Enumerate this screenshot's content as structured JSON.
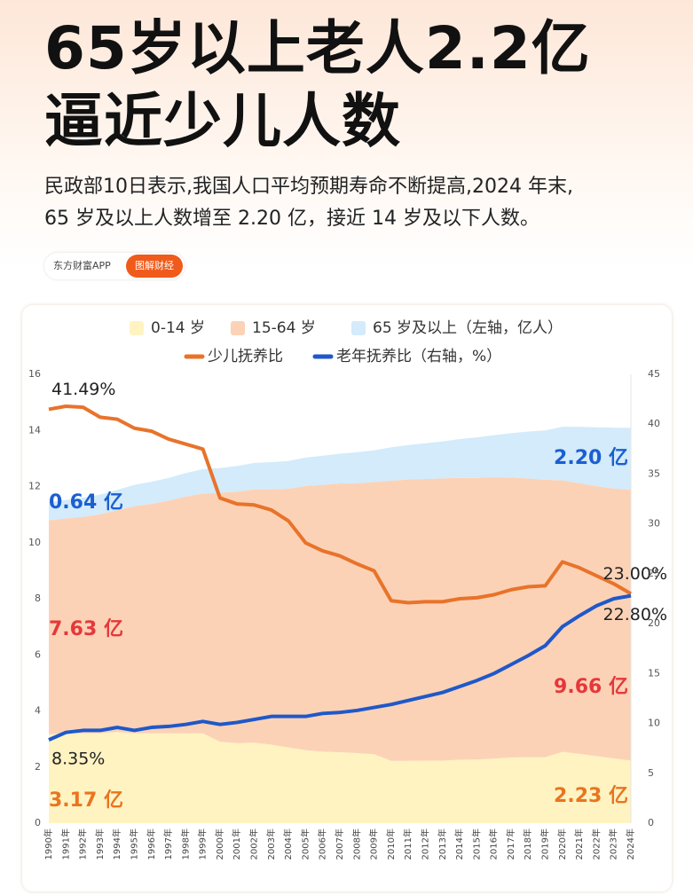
{
  "header": {
    "title_lines": [
      "65岁以上老人2.2亿",
      "逼近少儿人数"
    ],
    "summary_lines": [
      "民政部10日表示,我国人口平均预期寿命不断提高,2024 年末,",
      "65 岁及以上人数增至 2.20 亿，接近 14 岁及以下人数。"
    ],
    "source": "东方财富APP",
    "tag": "图解财经"
  },
  "chart_data": {
    "type": "stacked-area-line",
    "watermark": "东方财富",
    "categories": [
      "1990年",
      "1991年",
      "1992年",
      "1993年",
      "1994年",
      "1995年",
      "1996年",
      "1997年",
      "1998年",
      "1999年",
      "2000年",
      "2001年",
      "2002年",
      "2003年",
      "2004年",
      "2005年",
      "2006年",
      "2007年",
      "2008年",
      "2009年",
      "2010年",
      "2011年",
      "2012年",
      "2013年",
      "2014年",
      "2015年",
      "2016年",
      "2017年",
      "2018年",
      "2019年",
      "2020年",
      "2021年",
      "2022年",
      "2023年",
      "2024年"
    ],
    "ylim": [
      0,
      16
    ],
    "yticks": [
      0,
      2,
      4,
      6,
      8,
      10,
      12,
      14,
      16
    ],
    "y2lim": [
      0,
      45
    ],
    "y2ticks": [
      0,
      5,
      10,
      15,
      20,
      25,
      30,
      35,
      40,
      45
    ],
    "grid": false,
    "series": [
      {
        "name": "0-14 岁",
        "kind": "area",
        "color": "#fff3c2",
        "label_color": "#ea7420",
        "values": [
          3.17,
          3.2,
          3.2,
          3.2,
          3.25,
          3.2,
          3.2,
          3.2,
          3.2,
          3.2,
          2.9,
          2.85,
          2.87,
          2.8,
          2.7,
          2.6,
          2.55,
          2.53,
          2.5,
          2.46,
          2.22,
          2.22,
          2.23,
          2.23,
          2.26,
          2.27,
          2.3,
          2.34,
          2.35,
          2.35,
          2.54,
          2.47,
          2.39,
          2.31,
          2.23
        ],
        "value_labels": [
          "3.17 亿",
          null,
          null,
          null,
          null,
          null,
          null,
          null,
          null,
          null,
          null,
          null,
          null,
          null,
          null,
          null,
          null,
          null,
          null,
          null,
          null,
          null,
          null,
          null,
          null,
          null,
          null,
          null,
          null,
          null,
          null,
          null,
          null,
          null,
          "2.23 亿"
        ]
      },
      {
        "name": "15-64 岁",
        "kind": "area",
        "color": "#fcd2b6",
        "label_color": "#e5383b",
        "values": [
          7.63,
          7.66,
          7.72,
          7.81,
          7.91,
          8.1,
          8.18,
          8.3,
          8.44,
          8.55,
          8.88,
          8.97,
          9.03,
          9.1,
          9.22,
          9.42,
          9.51,
          9.58,
          9.62,
          9.7,
          9.99,
          10.03,
          10.04,
          10.06,
          10.05,
          10.04,
          10.03,
          9.98,
          9.94,
          9.89,
          9.68,
          9.65,
          9.62,
          9.62,
          9.66
        ],
        "value_labels": [
          "7.63 亿",
          null,
          null,
          null,
          null,
          null,
          null,
          null,
          null,
          null,
          null,
          null,
          null,
          null,
          null,
          null,
          null,
          null,
          null,
          null,
          null,
          null,
          null,
          null,
          null,
          null,
          null,
          null,
          null,
          null,
          null,
          null,
          null,
          null,
          "9.66 亿"
        ]
      },
      {
        "name": "65 岁及以上（左轴，亿人）",
        "kind": "area",
        "color": "#d3ebfb",
        "label_color": "#1b5fd0",
        "values": [
          0.64,
          0.66,
          0.68,
          0.7,
          0.72,
          0.76,
          0.79,
          0.81,
          0.84,
          0.87,
          0.88,
          0.91,
          0.94,
          0.97,
          0.99,
          1.01,
          1.04,
          1.06,
          1.1,
          1.13,
          1.19,
          1.23,
          1.27,
          1.32,
          1.38,
          1.44,
          1.5,
          1.58,
          1.67,
          1.76,
          1.91,
          2.01,
          2.1,
          2.17,
          2.2
        ],
        "value_labels": [
          "0.64 亿",
          null,
          null,
          null,
          null,
          null,
          null,
          null,
          null,
          null,
          null,
          null,
          null,
          null,
          null,
          null,
          null,
          null,
          null,
          null,
          null,
          null,
          null,
          null,
          null,
          null,
          null,
          null,
          null,
          null,
          null,
          null,
          null,
          null,
          "2.20 亿"
        ]
      },
      {
        "name": "少儿抚养比",
        "kind": "line",
        "axis": "y2",
        "color": "#e8732a",
        "label_color": "#222222",
        "values": [
          41.49,
          41.8,
          41.7,
          40.7,
          40.5,
          39.6,
          39.3,
          38.5,
          38.0,
          37.5,
          32.6,
          32.0,
          31.9,
          31.4,
          30.3,
          28.1,
          27.3,
          26.8,
          26.0,
          25.3,
          22.3,
          22.1,
          22.2,
          22.2,
          22.5,
          22.6,
          22.9,
          23.4,
          23.7,
          23.8,
          26.2,
          25.6,
          24.8,
          24.0,
          23.0
        ],
        "value_labels": [
          "41.49%",
          null,
          null,
          null,
          null,
          null,
          null,
          null,
          null,
          null,
          null,
          null,
          null,
          null,
          null,
          null,
          null,
          null,
          null,
          null,
          null,
          null,
          null,
          null,
          null,
          null,
          null,
          null,
          null,
          null,
          null,
          null,
          null,
          null,
          "23.00%"
        ]
      },
      {
        "name": "老年抚养比（右轴，%）",
        "kind": "line",
        "axis": "y2",
        "color": "#1f58c9",
        "label_color": "#222222",
        "values": [
          8.35,
          9.1,
          9.3,
          9.3,
          9.6,
          9.3,
          9.6,
          9.7,
          9.9,
          10.2,
          9.9,
          10.1,
          10.4,
          10.7,
          10.7,
          10.7,
          11.0,
          11.1,
          11.3,
          11.6,
          11.9,
          12.3,
          12.7,
          13.1,
          13.7,
          14.3,
          15.0,
          15.9,
          16.8,
          17.8,
          19.7,
          20.8,
          21.8,
          22.5,
          22.8
        ],
        "value_labels": [
          "8.35%",
          null,
          null,
          null,
          null,
          null,
          null,
          null,
          null,
          null,
          null,
          null,
          null,
          null,
          null,
          null,
          null,
          null,
          null,
          null,
          null,
          null,
          null,
          null,
          null,
          null,
          null,
          null,
          null,
          null,
          null,
          null,
          null,
          null,
          "22.80%"
        ]
      }
    ]
  }
}
